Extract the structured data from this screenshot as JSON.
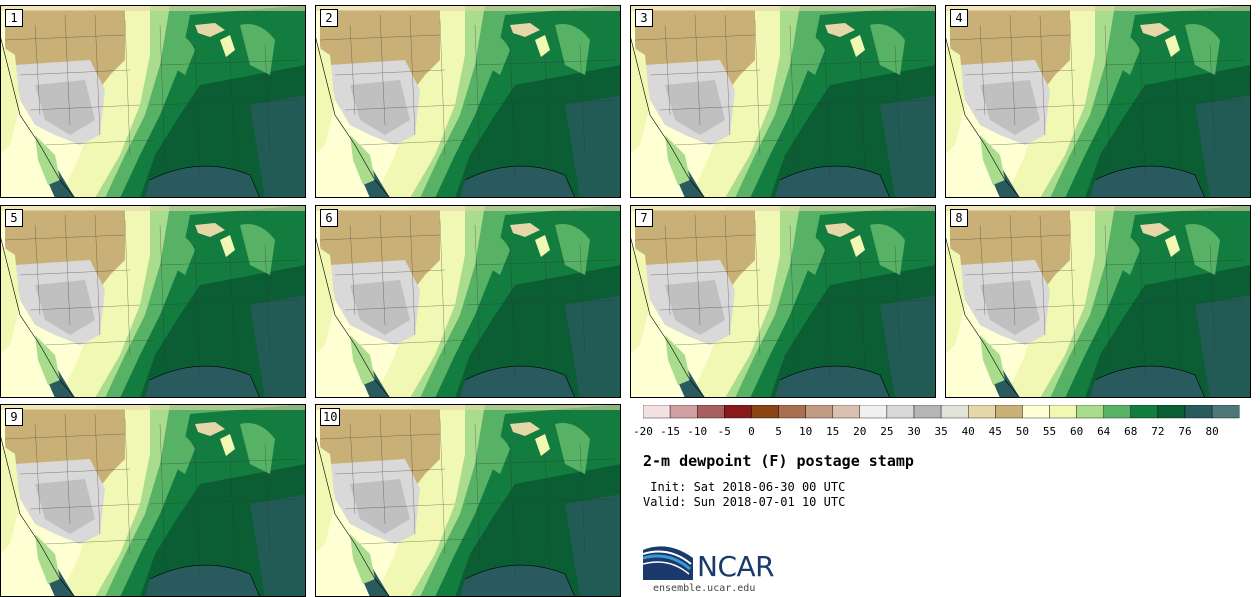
{
  "panels": [
    {
      "label": "1"
    },
    {
      "label": "2"
    },
    {
      "label": "3"
    },
    {
      "label": "4"
    },
    {
      "label": "5"
    },
    {
      "label": "6"
    },
    {
      "label": "7"
    },
    {
      "label": "8"
    },
    {
      "label": "9"
    },
    {
      "label": "10"
    }
  ],
  "legend": {
    "colors": [
      "#f3e2e2",
      "#d0a1a3",
      "#a95e60",
      "#881a1c",
      "#8a4513",
      "#a87050",
      "#c29a84",
      "#d9c0b0",
      "#f0f0f0",
      "#d9d9d9",
      "#b5b5b5",
      "#e3e2d6",
      "#e5d7a8",
      "#c9b077",
      "#ffffd4",
      "#f1f8b3",
      "#a9dc8d",
      "#58b266",
      "#137c3f",
      "#0b5e33",
      "#285a5e",
      "#4d7878"
    ],
    "ticks": [
      "-20",
      "-15",
      "-10",
      "-5",
      "0",
      "5",
      "10",
      "15",
      "20",
      "25",
      "30",
      "35",
      "40",
      "45",
      "50",
      "55",
      "60",
      "64",
      "68",
      "72",
      "76",
      "80"
    ]
  },
  "title": "2-m dewpoint (F) postage stamp",
  "init": " Init: Sat 2018-06-30 00 UTC",
  "valid": "Valid: Sun 2018-07-01 10 UTC",
  "logo_text": "NCAR",
  "site": "ensemble.ucar.edu"
}
